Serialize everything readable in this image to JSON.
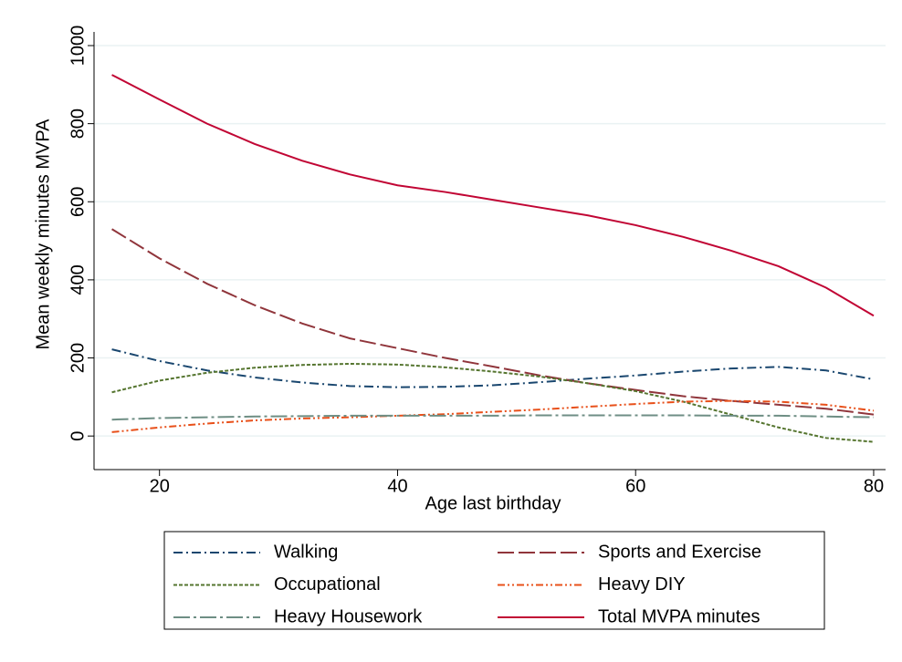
{
  "chart_data": {
    "type": "line",
    "x_label": "Age last birthday",
    "y_label": "Mean weekly minutes MVPA",
    "x": [
      16,
      20,
      24,
      28,
      32,
      36,
      40,
      44,
      48,
      52,
      56,
      60,
      64,
      68,
      72,
      76,
      80
    ],
    "xlim": [
      14.5,
      81
    ],
    "xticks": [
      20,
      40,
      60,
      80
    ],
    "ylim": [
      -86,
      1035
    ],
    "yticks": [
      0,
      200,
      400,
      600,
      800,
      1000
    ],
    "grid": true,
    "legend": "bottom",
    "series": [
      {
        "name": "Walking",
        "color": "#1a476f",
        "dash": "10 4 2 4",
        "values": [
          222,
          192,
          168,
          150,
          137,
          128,
          125,
          126,
          130,
          138,
          147,
          155,
          165,
          173,
          177,
          168,
          145
        ]
      },
      {
        "name": "Sports and Exercise",
        "color": "#90353b",
        "dash": "18 5",
        "values": [
          530,
          455,
          390,
          335,
          288,
          250,
          225,
          200,
          178,
          155,
          135,
          118,
          102,
          90,
          80,
          70,
          55
        ]
      },
      {
        "name": "Occupational",
        "color": "#55752f",
        "dash": "4 2",
        "values": [
          112,
          142,
          162,
          175,
          182,
          185,
          183,
          176,
          165,
          152,
          135,
          115,
          88,
          55,
          22,
          -5,
          -15
        ]
      },
      {
        "name": "Heavy DIY",
        "color": "#e8501a",
        "dash": "8 3 2 3 2 3",
        "values": [
          10,
          22,
          32,
          40,
          45,
          48,
          52,
          56,
          62,
          68,
          75,
          82,
          88,
          90,
          88,
          80,
          65
        ]
      },
      {
        "name": "Heavy Housework",
        "color": "#6e8e84",
        "dash": "18 4 3 4",
        "values": [
          42,
          46,
          48,
          50,
          51,
          52,
          52,
          52,
          52,
          53,
          53,
          53,
          53,
          52,
          52,
          50,
          48
        ]
      },
      {
        "name": "Total MVPA minutes",
        "color": "#c10534",
        "dash": "",
        "values": [
          925,
          862,
          800,
          748,
          705,
          670,
          642,
          625,
          605,
          585,
          565,
          540,
          510,
          475,
          435,
          380,
          308
        ]
      }
    ]
  }
}
